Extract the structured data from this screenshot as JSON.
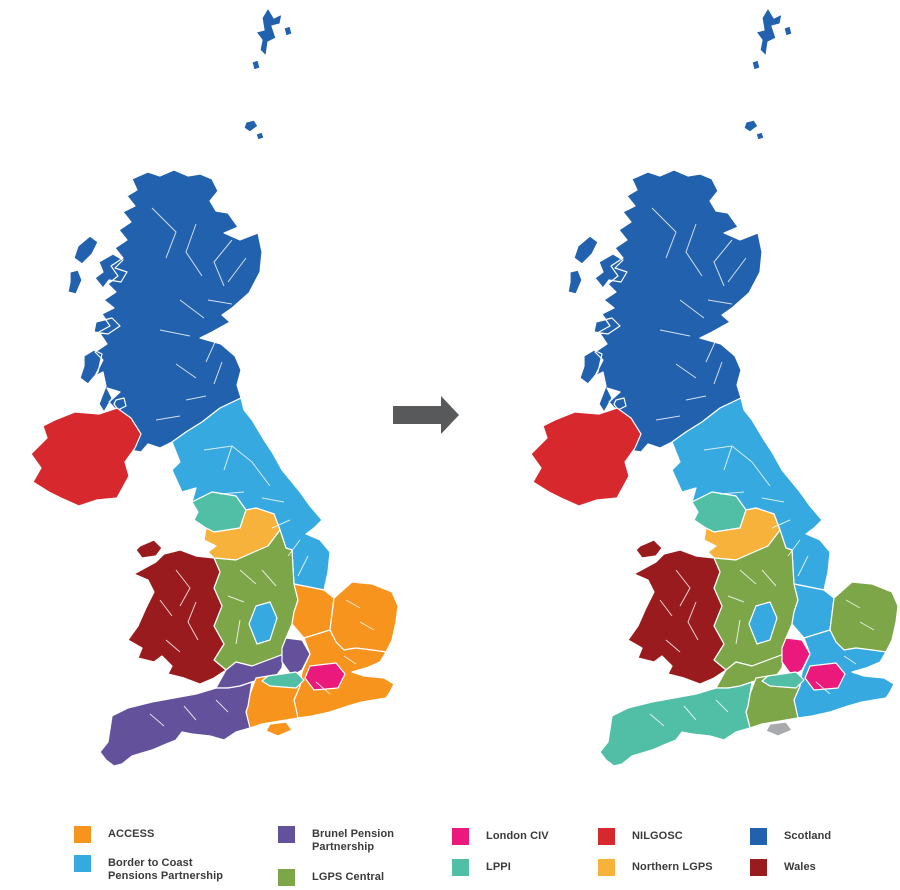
{
  "pools": {
    "access": {
      "label": "ACCESS",
      "color": "#F7941E"
    },
    "border_to_coast": {
      "label": "Border to Coast\nPensions Partnership",
      "color": "#36A9E1"
    },
    "brunel": {
      "label": "Brunel Pension\nPartnership",
      "color": "#64519C"
    },
    "lgps_central": {
      "label": "LGPS Central",
      "color": "#7CA647"
    },
    "london_civ": {
      "label": "London CIV",
      "color": "#EC197C"
    },
    "lppi": {
      "label": "LPPI",
      "color": "#50BFA5"
    },
    "nilgosc": {
      "label": "NILGOSC",
      "color": "#D7282E"
    },
    "northern_lgps": {
      "label": "Northern LGPS",
      "color": "#F6B23B"
    },
    "scotland": {
      "label": "Scotland",
      "color": "#2161AE"
    },
    "wales": {
      "label": "Wales",
      "color": "#9A1B1E"
    },
    "unpooled": {
      "label": "",
      "color": "#A8AAAD"
    }
  },
  "legend": {
    "items": [
      {
        "pool": "access",
        "label": "ACCESS"
      },
      {
        "pool": "border_to_coast",
        "label": "Border to Coast\nPensions Partnership"
      },
      {
        "pool": "brunel",
        "label": "Brunel Pension\nPartnership"
      },
      {
        "pool": "lgps_central",
        "label": "LGPS Central"
      },
      {
        "pool": "london_civ",
        "label": "London CIV"
      },
      {
        "pool": "lppi",
        "label": "LPPI"
      },
      {
        "pool": "nilgosc",
        "label": "NILGOSC"
      },
      {
        "pool": "northern_lgps",
        "label": "Northern LGPS"
      },
      {
        "pool": "scotland",
        "label": "Scotland"
      },
      {
        "pool": "wales",
        "label": "Wales"
      }
    ]
  },
  "maps": {
    "before": {
      "regions": {
        "scotland": "scotland",
        "northern-ireland": "nilgosc",
        "north-england": "border_to_coast",
        "lancashire": "lppi",
        "greater-manchester-area": "northern_lgps",
        "midlands": "lgps_central",
        "wales": "wales",
        "northants-cambs": "access",
        "east-anglia": "access",
        "south-east": "access",
        "gloucestershire-oxfordshire": "brunel",
        "buckinghamshire": "brunel",
        "hampshire": "access",
        "south-west": "brunel",
        "bedfordshire-patch": "border_to_coast",
        "berkshire": "lppi",
        "london": "london_civ",
        "isle-of-wight": "access"
      }
    },
    "after": {
      "regions": {
        "scotland": "scotland",
        "northern-ireland": "nilgosc",
        "north-england": "border_to_coast",
        "lancashire": "lppi",
        "greater-manchester-area": "northern_lgps",
        "midlands": "lgps_central",
        "wales": "wales",
        "northants-cambs": "border_to_coast",
        "east-anglia": "lgps_central",
        "south-east": "border_to_coast",
        "gloucestershire-oxfordshire": "lgps_central",
        "buckinghamshire": "london_civ",
        "hampshire": "lgps_central",
        "south-west": "lppi",
        "bedfordshire-patch": "border_to_coast",
        "berkshire": "lppi",
        "london": "london_civ",
        "isle-of-wight": "unpooled"
      }
    }
  },
  "arrow": {
    "color": "#58595B"
  }
}
